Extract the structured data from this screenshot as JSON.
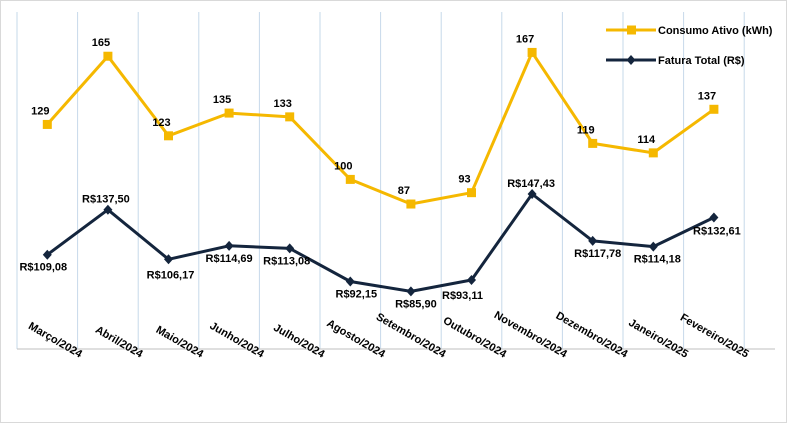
{
  "chart_data": {
    "type": "line",
    "title": "",
    "xlabel": "",
    "ylabel": "",
    "grid": true,
    "legend_position": "top-right",
    "categories": [
      "Março/2024",
      "Abril/2024",
      "Maio/2024",
      "Junho/2024",
      "Julho/2024",
      "Agosto/2024",
      "Setembro/2024",
      "Outubro/2024",
      "Novembro/2024",
      "Dezembro/2024",
      "Janeiro/2025",
      "Fevereiro/2025"
    ],
    "series": [
      {
        "name": "Consumo Ativo (kWh)",
        "color": "#f5b800",
        "marker": "square",
        "values": [
          129,
          165,
          123,
          135,
          133,
          100,
          87,
          93,
          167,
          119,
          114,
          137
        ],
        "labels": [
          "129",
          "165",
          "123",
          "135",
          "133",
          "100",
          "87",
          "93",
          "167",
          "119",
          "114",
          "137"
        ]
      },
      {
        "name": "Fatura Total (R$)",
        "color": "#14253d",
        "marker": "diamond",
        "values": [
          109.08,
          137.5,
          106.17,
          114.69,
          113.08,
          92.15,
          85.9,
          93.11,
          147.43,
          117.78,
          114.18,
          132.61
        ],
        "labels": [
          "R$109,08",
          "R$137,50",
          "R$106,17",
          "R$114,69",
          "R$113,08",
          "R$92,15",
          "R$85,90",
          "R$93,11",
          "R$147,43",
          "R$117,78",
          "R$114,18",
          "R$132,61"
        ]
      }
    ]
  }
}
